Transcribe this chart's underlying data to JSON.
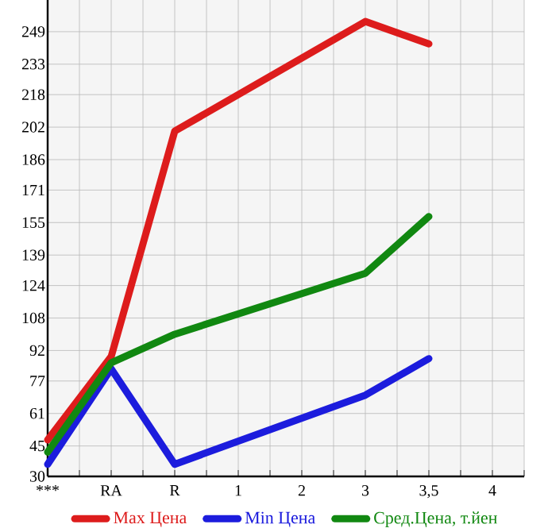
{
  "chart_data": {
    "type": "line",
    "categories": [
      "***",
      "RA",
      "R",
      "1",
      "2",
      "3",
      "3,5",
      "4"
    ],
    "series": [
      {
        "name": "Max Цена",
        "color": "#dd1c1c",
        "values": [
          48,
          89,
          200,
          null,
          null,
          254,
          243,
          null
        ]
      },
      {
        "name": "Min Цена",
        "color": "#1c1cdd",
        "values": [
          36,
          83,
          36,
          null,
          null,
          70,
          88,
          null
        ]
      },
      {
        "name": "Сред.Цена, т.йен",
        "color": "#118811",
        "values": [
          42,
          86,
          100,
          null,
          null,
          130,
          158,
          null
        ]
      }
    ],
    "ylim": [
      30,
      264.6
    ],
    "yticks": [
      30,
      45,
      61,
      77,
      92,
      108,
      124,
      139,
      155,
      171,
      186,
      202,
      218,
      233,
      249
    ],
    "grid": true,
    "legend": "bottom",
    "marker": "none",
    "line_style": "solid"
  }
}
